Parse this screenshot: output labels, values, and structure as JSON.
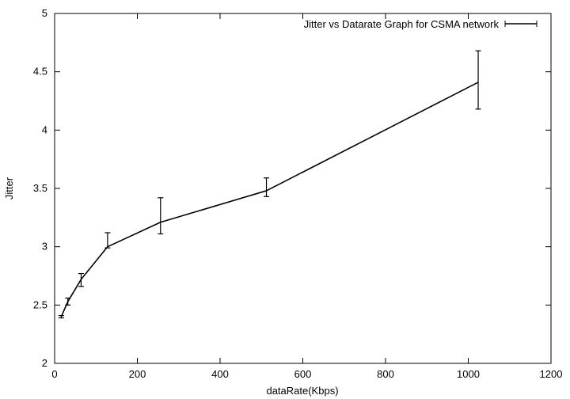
{
  "chart_data": {
    "type": "line",
    "xlabel": "dataRate(Kbps)",
    "ylabel": "Jitter",
    "xlim": [
      0,
      1200
    ],
    "ylim": [
      2,
      5
    ],
    "xticks": [
      0,
      200,
      400,
      600,
      800,
      1000,
      1200
    ],
    "yticks": [
      2,
      2.5,
      3,
      3.5,
      4,
      4.5,
      5
    ],
    "grid": false,
    "legend_position": "top-right",
    "series": [
      {
        "name": "Jitter vs Datarate Graph for CSMA network",
        "color": "#000000",
        "error_bars": true,
        "points": [
          {
            "x": 16,
            "y": 2.4,
            "err_low": 2.39,
            "err_high": 2.41
          },
          {
            "x": 32,
            "y": 2.53,
            "err_low": 2.5,
            "err_high": 2.56
          },
          {
            "x": 64,
            "y": 2.72,
            "err_low": 2.66,
            "err_high": 2.77
          },
          {
            "x": 128,
            "y": 3.0,
            "err_low": 2.99,
            "err_high": 3.12
          },
          {
            "x": 256,
            "y": 3.21,
            "err_low": 3.11,
            "err_high": 3.42
          },
          {
            "x": 512,
            "y": 3.48,
            "err_low": 3.43,
            "err_high": 3.59
          },
          {
            "x": 1024,
            "y": 4.41,
            "err_low": 4.18,
            "err_high": 4.68
          }
        ]
      }
    ]
  }
}
